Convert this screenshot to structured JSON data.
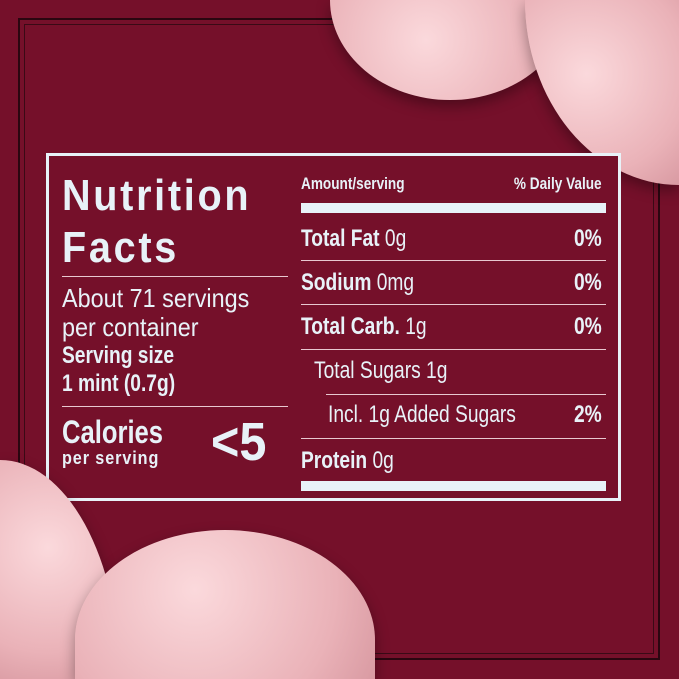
{
  "title_line1": "Nutrition",
  "title_line2": "Facts",
  "servings": "About 71 servings",
  "servings_line2": "per container",
  "serving_size_label": "Serving size",
  "serving_size_value": "1 mint (0.7g)",
  "calories_label": "Calories",
  "calories_sub": "per serving",
  "calories_value": "<5",
  "header": {
    "amount": "Amount/serving",
    "dv": "% Daily Value"
  },
  "rows": [
    {
      "label": "Total Fat",
      "amount": "0g",
      "dv": "0%"
    },
    {
      "label": "Sodium",
      "amount": "0mg",
      "dv": "0%"
    },
    {
      "label": "Total Carb.",
      "amount": "1g",
      "dv": "0%"
    },
    {
      "label": "",
      "amount": "Total Sugars 1g",
      "dv": ""
    },
    {
      "label": "",
      "amount": "Incl. 1g Added Sugars",
      "dv": "2%"
    },
    {
      "label": "Protein",
      "amount": "0g",
      "dv": ""
    }
  ],
  "colors": {
    "background": "#75102a",
    "text": "#e8f2f8",
    "mint": "#f4c6cb"
  }
}
